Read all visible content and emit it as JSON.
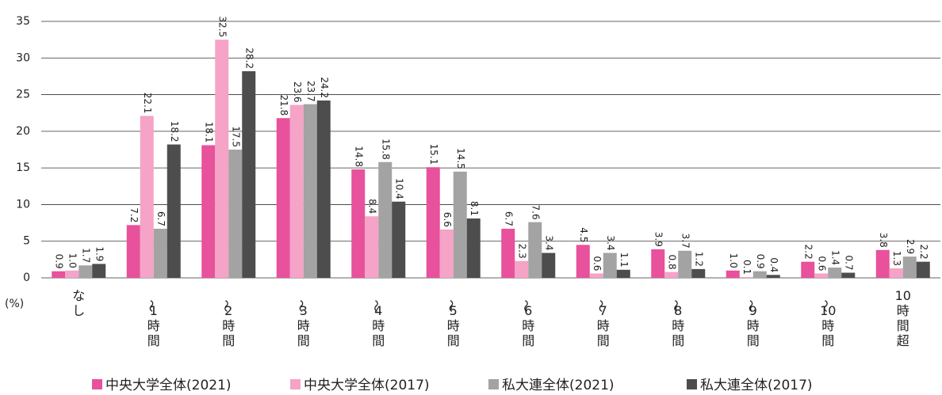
{
  "chart_data": {
    "type": "bar",
    "y_axis_label": "(%)",
    "categories": [
      "なし",
      "〜1時間",
      "〜2時間",
      "〜3時間",
      "〜4時間",
      "〜5時間",
      "〜6時間",
      "〜7時間",
      "〜8時間",
      "〜9時間",
      "〜10時間",
      "10時間超"
    ],
    "series": [
      {
        "name": "中央大学全体(2021)",
        "color": "#e8519b",
        "values": [
          0.9,
          7.2,
          18.1,
          21.8,
          14.8,
          15.1,
          6.7,
          4.5,
          3.9,
          1.0,
          2.2,
          3.8
        ],
        "value_labels": [
          "0.9",
          "7.2",
          "18.1",
          "21.8",
          "14.8",
          "15.1",
          "6.7",
          "4.5",
          "3.9",
          "1.0",
          "2.2",
          "3.8"
        ]
      },
      {
        "name": "中央大学全体(2017)",
        "color": "#f5a3c7",
        "values": [
          1.0,
          22.1,
          32.5,
          23.6,
          8.4,
          6.6,
          2.3,
          0.6,
          0.8,
          0.1,
          0.6,
          1.3
        ],
        "value_labels": [
          "1.0",
          "22.1",
          "32.5",
          "23.6",
          "8.4",
          "6.6",
          "2.3",
          "0.6",
          "0.8",
          "0.1",
          "0.6",
          "1.3"
        ]
      },
      {
        "name": "私大連全体(2021)",
        "color": "#a3a3a3",
        "values": [
          1.7,
          6.7,
          17.5,
          23.7,
          15.8,
          14.5,
          7.6,
          3.4,
          3.7,
          0.9,
          1.4,
          2.9
        ],
        "value_labels": [
          "1.7",
          "6.7",
          "17.5",
          "23.7",
          "15.8",
          "14.5",
          "7.6",
          "3.4",
          "3.7",
          "0.9",
          "1.4",
          "2.9"
        ]
      },
      {
        "name": "私大連全体(2017)",
        "color": "#4d4d4d",
        "values": [
          1.9,
          18.2,
          28.2,
          24.2,
          10.4,
          8.1,
          3.4,
          1.1,
          1.2,
          0.4,
          0.7,
          2.2
        ],
        "value_labels": [
          "1.9",
          "18.2",
          "28.2",
          "24.2",
          "10.4",
          "8.1",
          "3.4",
          "1.1",
          "1.2",
          "0.4",
          "0.7",
          "2.2"
        ]
      }
    ],
    "ylim": [
      0,
      35
    ],
    "yticks": [
      0,
      5,
      10,
      15,
      20,
      25,
      30,
      35
    ],
    "grid": true
  }
}
